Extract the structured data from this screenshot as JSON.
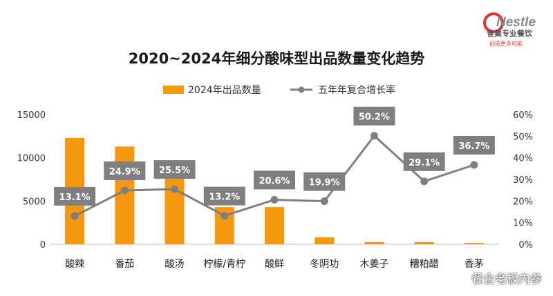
{
  "brand": {
    "logo_text": "Nestle",
    "name": "雀巢专业餐饮",
    "slogan": "创造更多可能",
    "colors": {
      "logo_red": "#e5322d",
      "logo_grey": "#8a8a8a"
    }
  },
  "watermark": "餐企老板内参",
  "colors": {
    "bar": "#F5980E",
    "line": "#7F7F7F",
    "label_bg": "#7F7F7F",
    "axis": "#bfbfbf"
  },
  "chart_data": {
    "type": "bar",
    "title": "2020~2024年细分酸味型出品数量变化趋势",
    "categories": [
      "酸辣",
      "番茄",
      "酸汤",
      "柠檬/青柠",
      "酸鲜",
      "冬阴功",
      "木姜子",
      "糟粕醋",
      "香茅"
    ],
    "series": [
      {
        "name": "2024年出品数量",
        "type": "bar",
        "axis": "left",
        "values": [
          12300,
          11300,
          8000,
          4300,
          4300,
          800,
          250,
          250,
          150
        ]
      },
      {
        "name": "五年年复合增长率",
        "type": "line",
        "axis": "right",
        "values": [
          13.1,
          24.9,
          25.5,
          13.2,
          20.6,
          19.9,
          50.2,
          29.1,
          36.7
        ],
        "labels": [
          "13.1%",
          "24.9%",
          "25.5%",
          "13.2%",
          "20.6%",
          "19.9%",
          "50.2%",
          "29.1%",
          "36.7%"
        ]
      }
    ],
    "y_left": {
      "min": 0,
      "max": 15000,
      "ticks": [
        "0",
        "5000",
        "10000",
        "15000"
      ]
    },
    "y_right": {
      "min": 0,
      "max": 60,
      "ticks": [
        "0%",
        "10%",
        "20%",
        "30%",
        "40%",
        "50%",
        "60%"
      ]
    },
    "legend": "top-center",
    "grid": false
  }
}
